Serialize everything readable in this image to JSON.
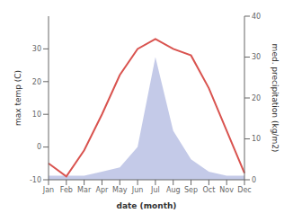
{
  "chart_data": {
    "type": "line",
    "xlabel": "date (month)",
    "ylabel": "max temp (C)",
    "y2label": "med. precipitation (kg/m2)",
    "categories": [
      "Jan",
      "Feb",
      "Mar",
      "Apr",
      "May",
      "Jun",
      "Jul",
      "Aug",
      "Sep",
      "Oct",
      "Nov",
      "Dec"
    ],
    "series": [
      {
        "type": "area",
        "axis": "y2",
        "color": "#b0b8e0",
        "values": [
          1,
          1,
          1,
          2,
          3,
          8,
          30,
          12,
          5,
          2,
          1,
          1
        ]
      },
      {
        "type": "line",
        "color": "#d9534f",
        "values": [
          -5,
          -9,
          -1,
          10,
          22,
          30,
          33,
          30,
          28,
          18,
          5,
          -8
        ]
      }
    ],
    "ylim": [
      -10,
      40
    ],
    "yticks": [
      -10,
      0,
      10,
      20,
      30
    ],
    "y2lim": [
      0,
      40
    ],
    "y2ticks": [
      0,
      10,
      20,
      30,
      40
    ],
    "grid": false
  }
}
